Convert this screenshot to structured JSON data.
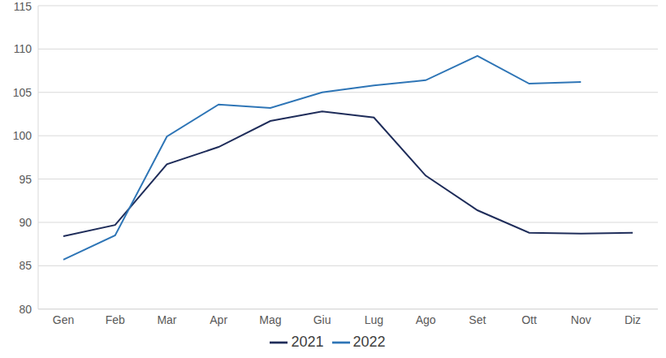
{
  "chart_data": {
    "type": "line",
    "categories": [
      "Gen",
      "Feb",
      "Mar",
      "Apr",
      "Mag",
      "Giu",
      "Lug",
      "Ago",
      "Set",
      "Ott",
      "Nov",
      "Diz"
    ],
    "series": [
      {
        "name": "2021",
        "color": "#1f2d5a",
        "values": [
          88.4,
          89.7,
          96.7,
          98.7,
          101.7,
          102.8,
          102.1,
          95.4,
          91.4,
          88.8,
          88.7,
          88.8
        ]
      },
      {
        "name": "2022",
        "color": "#2e75b6",
        "values": [
          85.7,
          88.5,
          99.9,
          103.6,
          103.2,
          105.0,
          105.8,
          106.4,
          109.2,
          106.0,
          106.2,
          null
        ]
      }
    ],
    "ylim": [
      80,
      115
    ],
    "yticks": [
      80,
      85,
      90,
      95,
      100,
      105,
      110,
      115
    ],
    "grid": true,
    "legend": "bottom"
  }
}
